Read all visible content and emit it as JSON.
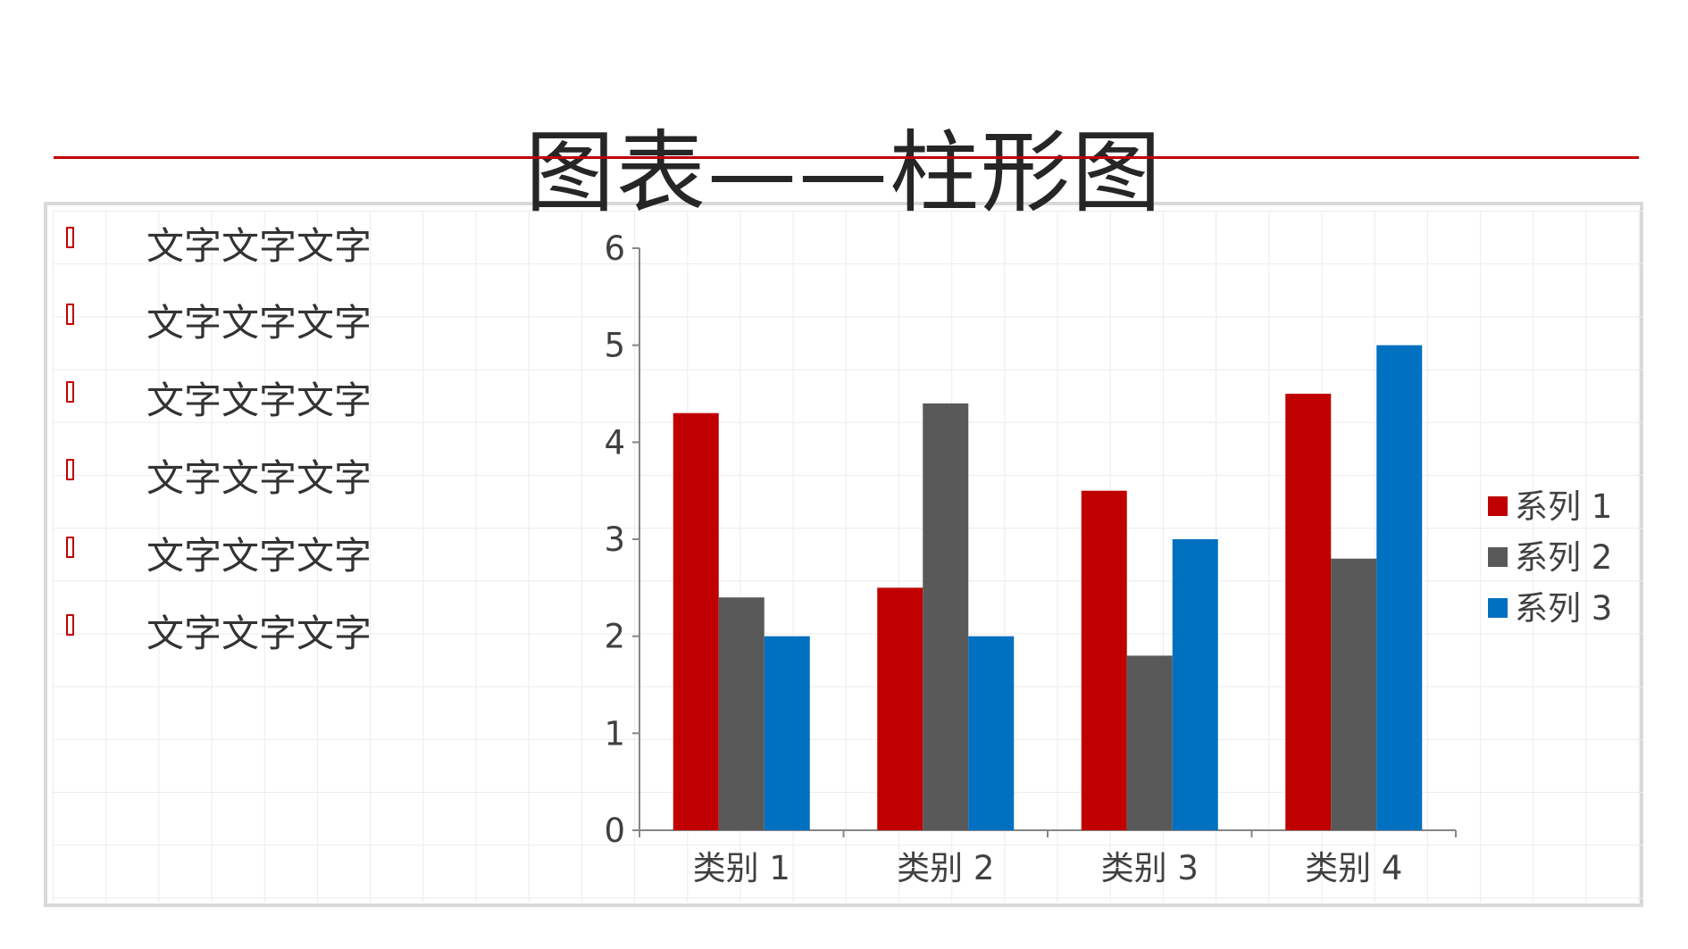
{
  "title": "图表——柱形图",
  "bullets": [
    "文字文字文字",
    "文字文字文字",
    "文字文字文字",
    "文字文字文字",
    "文字文字文字",
    "文字文字文字"
  ],
  "colors": {
    "accent": "#c00000",
    "series1": "#c00000",
    "series2": "#595959",
    "series3": "#0070c0"
  },
  "chart_data": {
    "type": "bar",
    "categories": [
      "类别 1",
      "类别 2",
      "类别 3",
      "类别 4"
    ],
    "series": [
      {
        "name": "系列 1",
        "values": [
          4.3,
          2.5,
          3.5,
          4.5
        ]
      },
      {
        "name": "系列 2",
        "values": [
          2.4,
          4.4,
          1.8,
          2.8
        ]
      },
      {
        "name": "系列 3",
        "values": [
          2,
          2,
          3,
          5
        ]
      }
    ],
    "title": "",
    "xlabel": "",
    "ylabel": "",
    "ylim": [
      0,
      6
    ],
    "yticks": [
      0,
      1,
      2,
      3,
      4,
      5,
      6
    ],
    "grid": false,
    "legend": "right"
  }
}
